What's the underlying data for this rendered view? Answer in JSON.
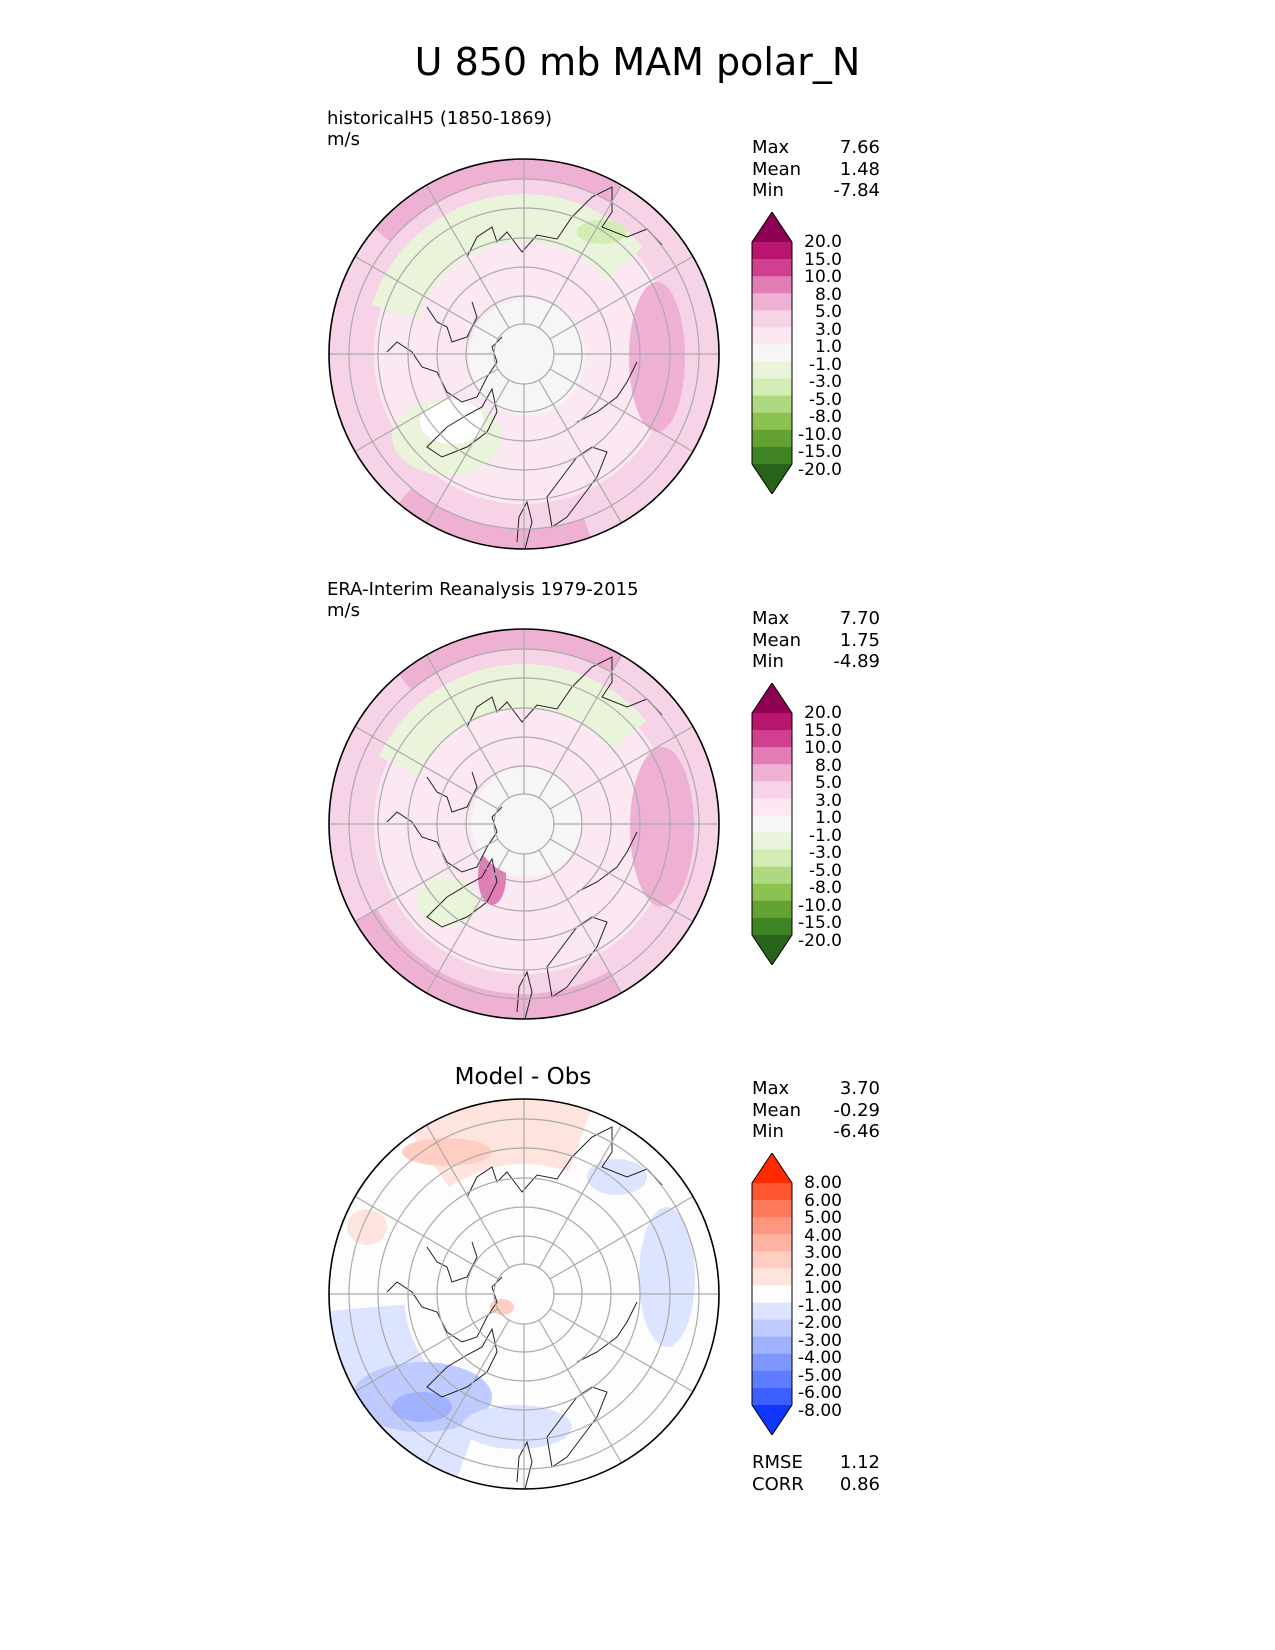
{
  "title": "U 850 mb MAM polar_N",
  "panels": [
    {
      "id": "test",
      "title_line1": "historicalH5 (1850-1869)",
      "title_line2": "m/s",
      "stats": [
        {
          "label": "Max",
          "value": "7.66"
        },
        {
          "label": "Mean",
          "value": "1.48"
        },
        {
          "label": "Min",
          "value": "-7.84"
        }
      ],
      "palette": "pink-green"
    },
    {
      "id": "ref",
      "title_line1": "ERA-Interim Reanalysis 1979-2015",
      "title_line2": "m/s",
      "stats": [
        {
          "label": "Max",
          "value": "7.70"
        },
        {
          "label": "Mean",
          "value": "1.75"
        },
        {
          "label": "Min",
          "value": "-4.89"
        }
      ],
      "palette": "pink-green"
    },
    {
      "id": "diff",
      "title": "Model - Obs",
      "stats": [
        {
          "label": "Max",
          "value": "3.70"
        },
        {
          "label": "Mean",
          "value": "-0.29"
        },
        {
          "label": "Min",
          "value": "-6.46"
        }
      ],
      "metrics": [
        {
          "label": "RMSE",
          "value": "1.12"
        },
        {
          "label": "CORR",
          "value": "0.86"
        }
      ],
      "palette": "red-blue"
    }
  ],
  "colorbars": {
    "field": {
      "levels": [
        "20.0",
        "15.0",
        "10.0",
        "8.0",
        "5.0",
        "3.0",
        "1.0",
        "-1.0",
        "-3.0",
        "-5.0",
        "-8.0",
        "-10.0",
        "-15.0",
        "-20.0"
      ],
      "colors": [
        "#8e0152",
        "#b8156e",
        "#d0408e",
        "#e17cb4",
        "#eeb0d3",
        "#f7d3e7",
        "#fbe8f2",
        "#f6f6f6",
        "#e9f4db",
        "#d2ecb3",
        "#aed980",
        "#8bc250",
        "#63a233",
        "#3f8424",
        "#276419"
      ]
    },
    "diff": {
      "levels": [
        "8.00",
        "6.00",
        "5.00",
        "4.00",
        "3.00",
        "2.00",
        "1.00",
        "-1.00",
        "-2.00",
        "-3.00",
        "-4.00",
        "-5.00",
        "-6.00",
        "-8.00"
      ],
      "colors": [
        "#ff2a00",
        "#ff5530",
        "#ff7a5c",
        "#ff9680",
        "#ffb3a2",
        "#ffcdc2",
        "#ffe4de",
        "#fdfdfd",
        "#dde4ff",
        "#bfcbff",
        "#9fb1ff",
        "#7f96ff",
        "#5e7cff",
        "#3d5fff",
        "#0f36ff"
      ]
    }
  },
  "chart_data": {
    "type": "heatmap",
    "projection": "north-polar-stereographic",
    "variable": "U",
    "level": "850 mb",
    "season": "MAM",
    "region": "polar_N",
    "units": "m/s",
    "panels": [
      {
        "name": "historicalH5 (1850-1869)",
        "max": 7.66,
        "mean": 1.48,
        "min": -7.84
      },
      {
        "name": "ERA-Interim Reanalysis 1979-2015",
        "max": 7.7,
        "mean": 1.75,
        "min": -4.89
      },
      {
        "name": "Model - Obs",
        "max": 3.7,
        "mean": -0.29,
        "min": -6.46,
        "rmse": 1.12,
        "corr": 0.86
      }
    ]
  }
}
